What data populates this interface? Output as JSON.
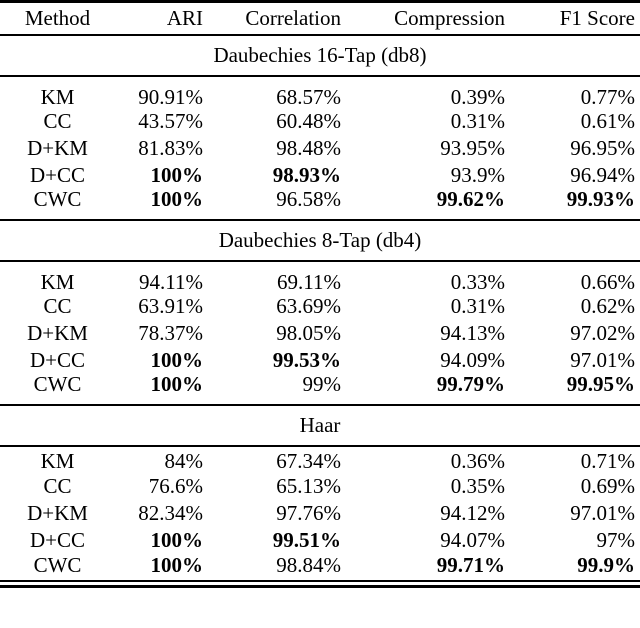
{
  "colors": {
    "text": "#000000",
    "background": "#ffffff",
    "rule": "#000000"
  },
  "table": {
    "columns": [
      "Method",
      "ARI",
      "Correlation",
      "Compression",
      "F1 Score"
    ],
    "sections": [
      {
        "title": "Daubechies 16-Tap (db8)",
        "rows": [
          {
            "method": "KM",
            "values": [
              "90.91%",
              "68.57%",
              "0.39%",
              "0.77%"
            ]
          },
          {
            "method": "CC",
            "values": [
              "43.57%",
              "60.48%",
              "0.31%",
              "0.61%"
            ]
          },
          {
            "method": "D+KM",
            "values": [
              "81.83%",
              "98.48%",
              "93.95%",
              "96.95%"
            ]
          },
          {
            "method": "D+CC",
            "values": [
              "100%",
              "98.93%",
              "93.9%",
              "96.94%"
            ]
          },
          {
            "method": "CWC",
            "values": [
              "100%",
              "96.58%",
              "99.62%",
              "99.93%"
            ]
          }
        ]
      },
      {
        "title": "Daubechies 8-Tap (db4)",
        "rows": [
          {
            "method": "KM",
            "values": [
              "94.11%",
              "69.11%",
              "0.33%",
              "0.66%"
            ]
          },
          {
            "method": "CC",
            "values": [
              "63.91%",
              "63.69%",
              "0.31%",
              "0.62%"
            ]
          },
          {
            "method": "D+KM",
            "values": [
              "78.37%",
              "98.05%",
              "94.13%",
              "97.02%"
            ]
          },
          {
            "method": "D+CC",
            "values": [
              "100%",
              "99.53%",
              "94.09%",
              "97.01%"
            ]
          },
          {
            "method": "CWC",
            "values": [
              "100%",
              "99%",
              "99.79%",
              "99.95%"
            ]
          }
        ]
      },
      {
        "title": "Haar",
        "rows": [
          {
            "method": "KM",
            "values": [
              "84%",
              "67.34%",
              "0.36%",
              "0.71%"
            ]
          },
          {
            "method": "CC",
            "values": [
              "76.6%",
              "65.13%",
              "0.35%",
              "0.69%"
            ]
          },
          {
            "method": "D+KM",
            "values": [
              "82.34%",
              "97.76%",
              "94.12%",
              "97.01%"
            ]
          },
          {
            "method": "D+CC",
            "values": [
              "100%",
              "99.51%",
              "94.07%",
              "97%"
            ]
          },
          {
            "method": "CWC",
            "values": [
              "100%",
              "98.84%",
              "99.71%",
              "99.9%"
            ]
          }
        ]
      }
    ]
  }
}
